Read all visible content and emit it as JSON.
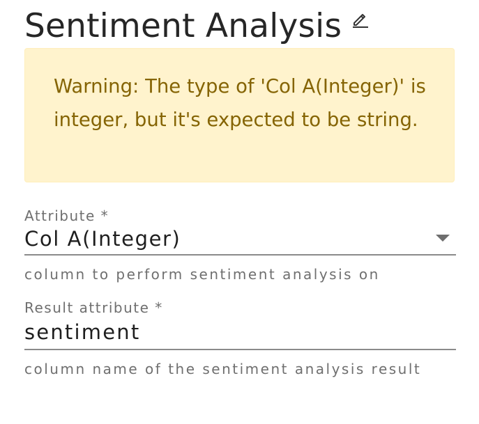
{
  "header": {
    "title": "Sentiment Analysis",
    "edit_icon": "pencil-icon"
  },
  "warning": {
    "message": "Warning: The type of 'Col A(Integer)' is integer, but it's expected to be string."
  },
  "attribute_field": {
    "label": "Attribute *",
    "selected_value": "Col A(Integer)",
    "helper_text": "column to perform sentiment analysis on"
  },
  "result_field": {
    "label": "Result attribute *",
    "value": "sentiment",
    "helper_text": "column name of the sentiment analysis result"
  },
  "colors": {
    "warning_background": "#fff3cd",
    "warning_text": "#856404",
    "underline": "#8a8a8a"
  }
}
